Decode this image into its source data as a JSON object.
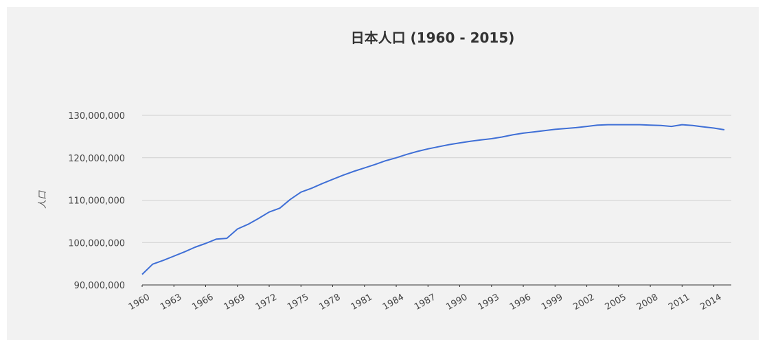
{
  "chart_data": {
    "type": "line",
    "title": "日本人口 (1960 - 2015)",
    "y_label": "人口",
    "x": [
      1960,
      1961,
      1962,
      1963,
      1964,
      1965,
      1966,
      1967,
      1968,
      1969,
      1970,
      1971,
      1972,
      1973,
      1974,
      1975,
      1976,
      1977,
      1978,
      1979,
      1980,
      1981,
      1982,
      1983,
      1984,
      1985,
      1986,
      1987,
      1988,
      1989,
      1990,
      1991,
      1992,
      1993,
      1994,
      1995,
      1996,
      1997,
      1998,
      1999,
      2000,
      2001,
      2002,
      2003,
      2004,
      2005,
      2006,
      2007,
      2008,
      2009,
      2010,
      2011,
      2012,
      2013,
      2014,
      2015
    ],
    "values": [
      92500000,
      94900000,
      95800000,
      96800000,
      97800000,
      98900000,
      99800000,
      100800000,
      101000000,
      103200000,
      104300000,
      105700000,
      107200000,
      108100000,
      110200000,
      111900000,
      112800000,
      113900000,
      114900000,
      115900000,
      116800000,
      117600000,
      118400000,
      119300000,
      120000000,
      120800000,
      121500000,
      122100000,
      122600000,
      123100000,
      123500000,
      123900000,
      124200000,
      124500000,
      124900000,
      125400000,
      125800000,
      126100000,
      126400000,
      126700000,
      126900000,
      127100000,
      127400000,
      127700000,
      127800000,
      127800000,
      127800000,
      127800000,
      127700000,
      127600000,
      127400000,
      127800000,
      127600000,
      127300000,
      127000000,
      126600000
    ],
    "color": "#3f6fd6",
    "xlim": [
      1960,
      2015
    ],
    "xticks": [
      1960,
      1963,
      1966,
      1969,
      1972,
      1975,
      1978,
      1981,
      1984,
      1987,
      1990,
      1993,
      1996,
      1999,
      2002,
      2005,
      2008,
      2011,
      2014
    ],
    "ylim": [
      90000000,
      130000000
    ],
    "yticks": [
      {
        "value": 90000000,
        "label": "90,000,000"
      },
      {
        "value": 100000000,
        "label": "100,000,000"
      },
      {
        "value": 110000000,
        "label": "110,000,000"
      },
      {
        "value": 120000000,
        "label": "120,000,000"
      },
      {
        "value": 130000000,
        "label": "130,000,000"
      }
    ],
    "grid": true
  }
}
